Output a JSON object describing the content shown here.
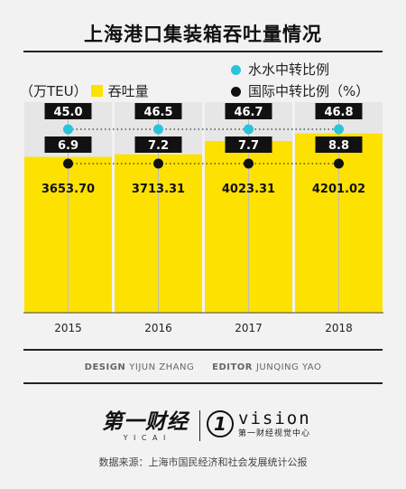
{
  "header": {
    "title": "上海港口集装箱吞吐量情况"
  },
  "legend": {
    "unit_label": "（万TEU）",
    "bar_label": "吞吐量",
    "dot1_label": "水水中转比例",
    "dot2_label": "国际中转比例（%）"
  },
  "colors": {
    "bar": "#fde100",
    "dot_cyan": "#29c4d9",
    "dot_black": "#111111",
    "bg": "#f2f2f2",
    "panel": "#e6e6e6"
  },
  "chart_data": {
    "type": "bar",
    "categories": [
      "2015",
      "2016",
      "2017",
      "2018"
    ],
    "series": [
      {
        "name": "吞吐量",
        "values": [
          3653.7,
          3713.31,
          4023.31,
          4201.02
        ],
        "labels": [
          "3653.70",
          "3713.31",
          "4023.31",
          "4201.02"
        ]
      },
      {
        "name": "水水中转比例",
        "values": [
          45.0,
          46.5,
          46.7,
          46.8
        ],
        "labels": [
          "45.0",
          "46.5",
          "46.7",
          "46.8"
        ]
      },
      {
        "name": "国际中转比例（%）",
        "values": [
          6.9,
          7.2,
          7.7,
          8.8
        ],
        "labels": [
          "6.9",
          "7.2",
          "7.7",
          "8.8"
        ]
      }
    ],
    "ylabel": "（万TEU）",
    "ylim": [
      0,
      5000
    ],
    "grid": false,
    "legend_position": "top"
  },
  "credits": {
    "design_label": "DESIGN",
    "design_name": "YIJUN ZHANG",
    "editor_label": "EDITOR",
    "editor_name": "JUNQING YAO"
  },
  "brand": {
    "cbn_logo": "第一财经",
    "cbn_sub": "Y I C A I",
    "vision_logo": "vision",
    "vision_sub": "第一财经视觉中心",
    "logo_icon": "vision-1-icon"
  },
  "footer": {
    "source": "数据来源：上海市国民经济和社会发展统计公报"
  }
}
